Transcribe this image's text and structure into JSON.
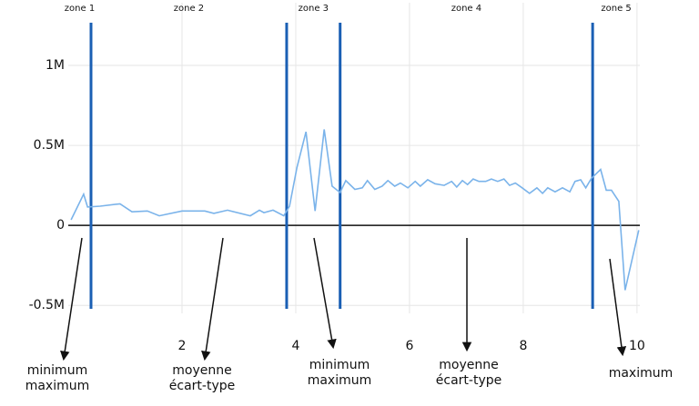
{
  "chart_data": {
    "type": "line",
    "zones": [
      "zone 1",
      "zone 2",
      "zone 3",
      "zone 4",
      "zone 5"
    ],
    "zone_boundaries": [
      0.4,
      3.84,
      4.78,
      9.22
    ],
    "boundary_color": "#1a5fb4",
    "xlim": [
      0,
      10.05
    ],
    "xticks": [
      2,
      4,
      6,
      8,
      10
    ],
    "ylim": [
      -550000,
      1250000
    ],
    "yticks": [
      {
        "value": -500000,
        "label": "-0.5M"
      },
      0,
      {
        "value": 500000,
        "label": "0.5M"
      },
      {
        "value": 1000000,
        "label": "1M"
      }
    ],
    "grid": true,
    "series": [
      {
        "color": "#7ab3ea",
        "x": [
          0.05,
          0.27,
          0.34,
          0.56,
          0.91,
          1.12,
          1.39,
          1.6,
          2.0,
          2.4,
          2.56,
          2.8,
          3.2,
          3.36,
          3.44,
          3.6,
          3.79,
          3.89,
          4.02,
          4.18,
          4.34,
          4.5,
          4.64,
          4.78,
          4.88,
          5.04,
          5.17,
          5.26,
          5.39,
          5.52,
          5.62,
          5.74,
          5.84,
          5.97,
          6.1,
          6.19,
          6.32,
          6.45,
          6.61,
          6.74,
          6.83,
          6.93,
          7.02,
          7.12,
          7.22,
          7.34,
          7.44,
          7.55,
          7.66,
          7.76,
          7.86,
          7.98,
          8.11,
          8.24,
          8.34,
          8.43,
          8.56,
          8.69,
          8.82,
          8.91,
          9.01,
          9.1,
          9.2,
          9.36,
          9.46,
          9.55,
          9.68,
          9.79,
          9.95,
          10.03
        ],
        "values": [
          35000,
          195000,
          115000,
          120000,
          135000,
          85000,
          90000,
          60000,
          90000,
          90000,
          75000,
          95000,
          60000,
          95000,
          80000,
          95000,
          60000,
          120000,
          360000,
          585000,
          90000,
          600000,
          245000,
          205000,
          280000,
          225000,
          235000,
          280000,
          225000,
          245000,
          280000,
          245000,
          265000,
          235000,
          275000,
          245000,
          285000,
          260000,
          250000,
          275000,
          240000,
          280000,
          255000,
          290000,
          275000,
          275000,
          290000,
          275000,
          290000,
          250000,
          265000,
          235000,
          200000,
          235000,
          200000,
          235000,
          210000,
          235000,
          210000,
          275000,
          285000,
          235000,
          295000,
          350000,
          220000,
          220000,
          150000,
          -405000,
          -155000,
          -30000
        ]
      }
    ],
    "annotations": [
      {
        "lines": [
          "minimum",
          "maximum"
        ]
      },
      {
        "lines": [
          "moyenne",
          "écart-type"
        ]
      },
      {
        "lines": [
          "minimum",
          "maximum"
        ]
      },
      {
        "lines": [
          "moyenne",
          "écart-type"
        ]
      },
      {
        "lines": [
          "maximum"
        ]
      }
    ]
  }
}
